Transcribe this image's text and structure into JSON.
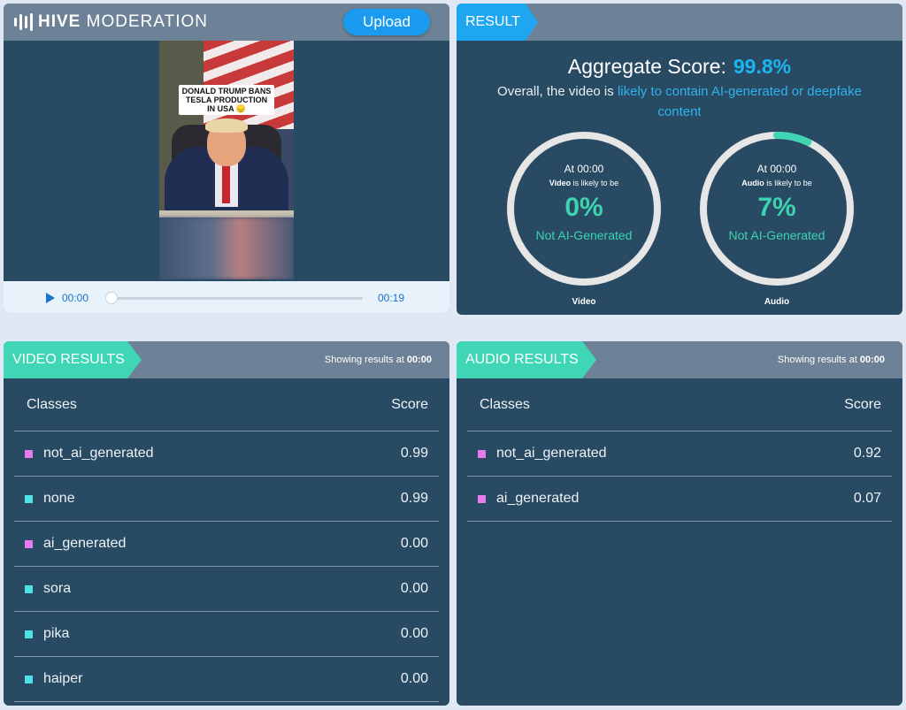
{
  "header": {
    "logo_bold": "HIVE",
    "logo_light": "MODERATION",
    "upload_label": "Upload"
  },
  "video": {
    "caption": "DONALD TRUMP BANS TESLA PRODUCTION IN USA 😞",
    "current_time": "00:00",
    "total_time": "00:19",
    "progress": 0
  },
  "result": {
    "tag": "RESULT",
    "aggregate_label": "Aggregate Score:",
    "aggregate_value": "99.8%",
    "overall_prefix": "Overall, the video is",
    "overall_highlight": "likely to contain AI-generated or deepfake content",
    "gauges": [
      {
        "at": "At 00:00",
        "subject": "Video",
        "likely": "is likely to be",
        "percent": "0%",
        "fill": 0,
        "label": "Not AI-Generated",
        "name": "Video"
      },
      {
        "at": "At 00:00",
        "subject": "Audio",
        "likely": "is likely to be",
        "percent": "7%",
        "fill": 0.07,
        "label": "Not AI-Generated",
        "name": "Audio"
      }
    ]
  },
  "video_results": {
    "tag": "VIDEO RESULTS",
    "showing_prefix": "Showing results at",
    "showing_time": "00:00",
    "col_classes": "Classes",
    "col_score": "Score",
    "rows": [
      {
        "name": "not_ai_generated",
        "score": "0.99",
        "color": "#e77cf0"
      },
      {
        "name": "none",
        "score": "0.99",
        "color": "#4fe0e8"
      },
      {
        "name": "ai_generated",
        "score": "0.00",
        "color": "#e77cf0"
      },
      {
        "name": "sora",
        "score": "0.00",
        "color": "#4fe0e8"
      },
      {
        "name": "pika",
        "score": "0.00",
        "color": "#4fe0e8"
      },
      {
        "name": "haiper",
        "score": "0.00",
        "color": "#4fe0e8"
      }
    ]
  },
  "audio_results": {
    "tag": "AUDIO RESULTS",
    "showing_prefix": "Showing results at",
    "showing_time": "00:00",
    "col_classes": "Classes",
    "col_score": "Score",
    "rows": [
      {
        "name": "not_ai_generated",
        "score": "0.92",
        "color": "#e77cf0"
      },
      {
        "name": "ai_generated",
        "score": "0.07",
        "color": "#e77cf0"
      }
    ]
  },
  "colors": {
    "result_tag": "#1ea7f0",
    "results_tag": "#3fd6b6",
    "gauge_track": "#e6e6e6",
    "gauge_fill": "#3fd6b6"
  }
}
